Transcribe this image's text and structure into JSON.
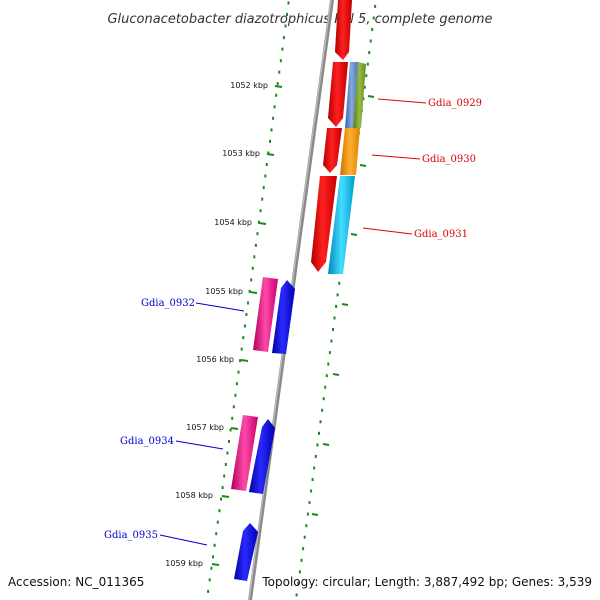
{
  "title": "Gluconacetobacter diazotrophicus PAl 5, complete genome",
  "footer": {
    "accession": "Accession: NC_011365",
    "topology": "Topology: circular; Length: 3,887,492 bp; Genes: 3,539"
  },
  "ticks": [
    "1052 kbp",
    "1053 kbp",
    "1054 kbp",
    "1055 kbp",
    "1056 kbp",
    "1057 kbp",
    "1058 kbp",
    "1059 kbp"
  ],
  "gene_labels": [
    {
      "id": "Gdia_0929",
      "text": "Gdia_0929",
      "color": "#dd0000"
    },
    {
      "id": "Gdia_0930",
      "text": "Gdia_0930",
      "color": "#dd0000"
    },
    {
      "id": "Gdia_0931",
      "text": "Gdia_0931",
      "color": "#dd0000"
    },
    {
      "id": "Gdia_0932",
      "text": "Gdia_0932",
      "color": "#0000cc"
    },
    {
      "id": "Gdia_0934",
      "text": "Gdia_0934",
      "color": "#0000cc"
    },
    {
      "id": "Gdia_0935",
      "text": "Gdia_0935",
      "color": "#0000cc"
    }
  ],
  "colors": {
    "backbone": "#8a8a8a",
    "dots": "#1a8a1a",
    "label_red": "#dd0000",
    "label_blue": "#0000cc",
    "gene_red": "#ee0000",
    "gene_blue": "#0000ee",
    "gene_pink": "#ee1188",
    "gene_orange": "#ff9900",
    "gene_cyan": "#00aadd",
    "gene_steel": "#5588cc",
    "gene_olive": "#779922"
  }
}
